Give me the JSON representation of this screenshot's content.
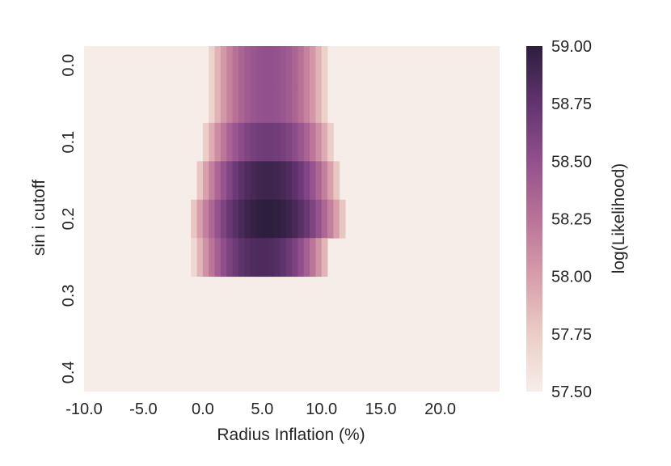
{
  "chart_data": {
    "type": "heatmap",
    "xlabel": "Radius Inflation (%)",
    "ylabel": "sin i cutoff",
    "x_tick_labels": [
      "-10.0",
      "-5.0",
      "0.0",
      "5.0",
      "10.0",
      "15.0",
      "20.0"
    ],
    "y_tick_labels": [
      "0.0",
      "0.1",
      "0.2",
      "0.3",
      "0.4"
    ],
    "x_range": [
      -10,
      25
    ],
    "x_step": 0.5,
    "y_rows": [
      0.0,
      0.05,
      0.1,
      0.15,
      0.2,
      0.25,
      0.3,
      0.35,
      0.4
    ],
    "colorbar": {
      "label": "log(Likelihood)",
      "min": 57.5,
      "max": 59.0,
      "tick_labels": [
        "57.50",
        "57.75",
        "58.00",
        "58.25",
        "58.50",
        "58.75",
        "59.00"
      ]
    },
    "color_scale": [
      "#f7ede8",
      "#ebcdc7",
      "#d79eaa",
      "#ba7397",
      "#92508d",
      "#62346f",
      "#2d1e3e"
    ],
    "rows": [
      {
        "sini": 0.0,
        "x_from": 0.5,
        "x_to": 10.5,
        "peak_x": 5.5,
        "peak_value": 58.5
      },
      {
        "sini": 0.05,
        "x_from": 0.5,
        "x_to": 10.5,
        "peak_x": 5.5,
        "peak_value": 58.5
      },
      {
        "sini": 0.1,
        "x_from": 0.0,
        "x_to": 11.0,
        "peak_x": 5.5,
        "peak_value": 58.68
      },
      {
        "sini": 0.15,
        "x_from": -0.5,
        "x_to": 11.5,
        "peak_x": 5.5,
        "peak_value": 58.92
      },
      {
        "sini": 0.2,
        "x_from": -1.0,
        "x_to": 12.0,
        "peak_x": 5.5,
        "peak_value": 59.0
      },
      {
        "sini": 0.25,
        "x_from": -1.0,
        "x_to": 10.5,
        "peak_x": 5.0,
        "peak_value": 58.85
      },
      {
        "sini": 0.3,
        "x_from": null,
        "x_to": null,
        "peak_x": null,
        "peak_value": 57.5
      },
      {
        "sini": 0.35,
        "x_from": null,
        "x_to": null,
        "peak_x": null,
        "peak_value": 57.5
      },
      {
        "sini": 0.4,
        "x_from": null,
        "x_to": null,
        "peak_x": null,
        "peak_value": 57.5
      }
    ],
    "grid": false
  }
}
